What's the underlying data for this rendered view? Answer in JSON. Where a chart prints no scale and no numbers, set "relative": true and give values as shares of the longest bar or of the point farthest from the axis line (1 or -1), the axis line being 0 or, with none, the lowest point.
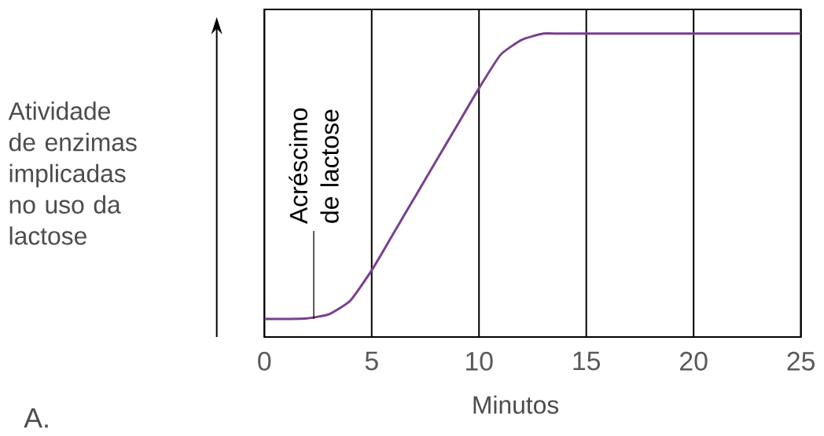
{
  "chart_data": {
    "type": "line",
    "relative": true,
    "xlabel": "Minutos",
    "ylabel": "Atividade de enzimas implicadas no uso da lactose",
    "x": [
      0,
      1,
      2,
      3,
      4,
      5,
      6,
      7,
      8,
      9,
      10,
      11,
      12,
      13,
      14,
      25
    ],
    "series": [
      {
        "color": "#7b3f8f",
        "values": [
          0.06,
          0.06,
          0.062,
          0.075,
          0.12,
          0.22,
          0.34,
          0.46,
          0.58,
          0.7,
          0.82,
          0.93,
          0.98,
          1.0,
          1.0,
          1.0
        ]
      }
    ],
    "xlim": [
      0,
      25
    ],
    "xticks": [
      0,
      5,
      10,
      15,
      20,
      25
    ],
    "grid": "x",
    "annotations": [
      {
        "text": "Acréscimo de lactose",
        "x": 2.3,
        "y": 0.06
      },
      "A."
    ]
  }
}
